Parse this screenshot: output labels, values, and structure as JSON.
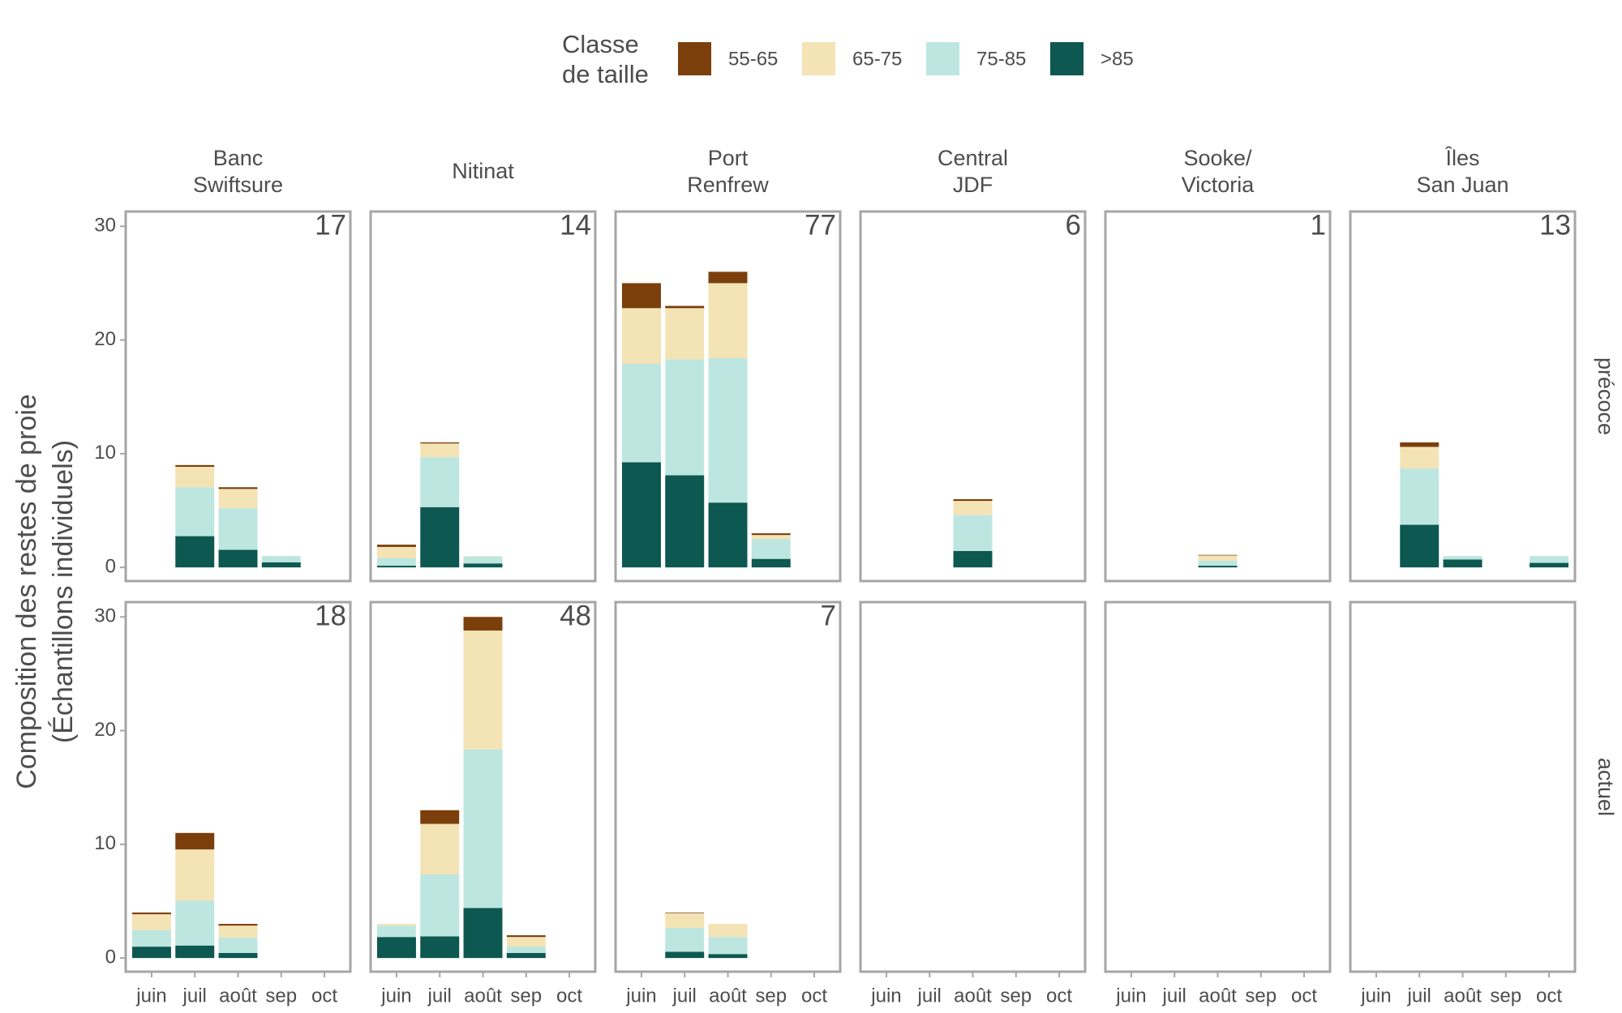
{
  "legend_title": [
    "Classe",
    "de taille"
  ],
  "ylabel": [
    "Composition des restes de proie",
    "(Échantillons individuels)"
  ],
  "chart_data": [
    {
      "type": "bar",
      "stacked": true,
      "title": [
        "Banc",
        "Swiftsure"
      ],
      "annotation": "17",
      "categories": [
        "juin",
        "juil",
        "août",
        "sep",
        "oct"
      ],
      "ylim": [
        -1.2,
        31.3
      ],
      "yticks": [
        0,
        10,
        20,
        30
      ],
      "series": [
        {
          "name": "55-65",
          "color": "#7b3f0c",
          "values": [
            0,
            0.15,
            0.15,
            0,
            0
          ]
        },
        {
          "name": "65-75",
          "color": "#f3e3b5",
          "values": [
            0,
            1.8,
            1.7,
            0,
            0
          ]
        },
        {
          "name": "75-85",
          "color": "#bde6e0",
          "values": [
            0,
            4.3,
            3.65,
            0.55,
            0
          ]
        },
        {
          "name": ">85",
          "color": "#0d5850",
          "values": [
            0,
            2.75,
            1.55,
            0.45,
            0
          ]
        }
      ]
    },
    {
      "type": "bar",
      "stacked": true,
      "title": [
        "Nitinat"
      ],
      "annotation": "14",
      "categories": [
        "juin",
        "juil",
        "août",
        "sep",
        "oct"
      ],
      "ylim": [
        -1.2,
        31.3
      ],
      "series": [
        {
          "name": "55-65",
          "color": "#7b3f0c",
          "values": [
            0.2,
            0.1,
            0,
            0,
            0
          ]
        },
        {
          "name": "65-75",
          "color": "#f3e3b5",
          "values": [
            1.0,
            1.2,
            0.05,
            0,
            0
          ]
        },
        {
          "name": "75-85",
          "color": "#bde6e0",
          "values": [
            0.65,
            4.4,
            0.6,
            0,
            0
          ]
        },
        {
          "name": ">85",
          "color": "#0d5850",
          "values": [
            0.15,
            5.3,
            0.35,
            0,
            0
          ]
        }
      ]
    },
    {
      "type": "bar",
      "stacked": true,
      "title": [
        "Port",
        "Renfrew"
      ],
      "annotation": "77",
      "categories": [
        "juin",
        "juil",
        "août",
        "sep",
        "oct"
      ],
      "ylim": [
        -1.2,
        31.3
      ],
      "series": [
        {
          "name": "55-65",
          "color": "#7b3f0c",
          "values": [
            2.2,
            0.2,
            1.0,
            0.15,
            0
          ]
        },
        {
          "name": "65-75",
          "color": "#f3e3b5",
          "values": [
            4.9,
            4.5,
            6.6,
            0.35,
            0
          ]
        },
        {
          "name": "75-85",
          "color": "#bde6e0",
          "values": [
            8.65,
            10.2,
            12.7,
            1.75,
            0
          ]
        },
        {
          "name": ">85",
          "color": "#0d5850",
          "values": [
            9.25,
            8.1,
            5.7,
            0.75,
            0
          ]
        }
      ]
    },
    {
      "type": "bar",
      "stacked": true,
      "title": [
        "Central",
        "JDF"
      ],
      "annotation": "6",
      "categories": [
        "juin",
        "juil",
        "août",
        "sep",
        "oct"
      ],
      "ylim": [
        -1.2,
        31.3
      ],
      "series": [
        {
          "name": "55-65",
          "color": "#7b3f0c",
          "values": [
            0,
            0,
            0.15,
            0,
            0
          ]
        },
        {
          "name": "65-75",
          "color": "#f3e3b5",
          "values": [
            0,
            0,
            1.25,
            0,
            0
          ]
        },
        {
          "name": "75-85",
          "color": "#bde6e0",
          "values": [
            0,
            0,
            3.15,
            0,
            0
          ]
        },
        {
          "name": ">85",
          "color": "#0d5850",
          "values": [
            0,
            0,
            1.45,
            0,
            0
          ]
        }
      ]
    },
    {
      "type": "bar",
      "stacked": true,
      "title": [
        "Sooke/",
        "Victoria"
      ],
      "annotation": "1",
      "categories": [
        "juin",
        "juil",
        "août",
        "sep",
        "oct"
      ],
      "ylim": [
        -1.2,
        31.3
      ],
      "series": [
        {
          "name": "55-65",
          "color": "#7b3f0c",
          "values": [
            0,
            0,
            0.05,
            0,
            0
          ]
        },
        {
          "name": "65-75",
          "color": "#f3e3b5",
          "values": [
            0,
            0,
            0.45,
            0,
            0
          ]
        },
        {
          "name": "75-85",
          "color": "#bde6e0",
          "values": [
            0,
            0,
            0.45,
            0,
            0
          ]
        },
        {
          "name": ">85",
          "color": "#0d5850",
          "values": [
            0,
            0,
            0.15,
            0,
            0
          ]
        }
      ]
    },
    {
      "type": "bar",
      "stacked": true,
      "title": [
        "Îles",
        "San Juan"
      ],
      "row_label": "précoce",
      "annotation": "13",
      "categories": [
        "juin",
        "juil",
        "août",
        "sep",
        "oct"
      ],
      "ylim": [
        -1.2,
        31.3
      ],
      "series": [
        {
          "name": "55-65",
          "color": "#7b3f0c",
          "values": [
            0,
            0.4,
            0,
            0,
            0
          ]
        },
        {
          "name": "65-75",
          "color": "#f3e3b5",
          "values": [
            0,
            1.9,
            0,
            0,
            0
          ]
        },
        {
          "name": "75-85",
          "color": "#bde6e0",
          "values": [
            0,
            4.95,
            0.3,
            0,
            0.6
          ]
        },
        {
          "name": ">85",
          "color": "#0d5850",
          "values": [
            0,
            3.75,
            0.7,
            0,
            0.4
          ]
        }
      ]
    },
    {
      "type": "bar",
      "stacked": true,
      "annotation": "18",
      "categories": [
        "juin",
        "juil",
        "août",
        "sep",
        "oct"
      ],
      "ylim": [
        -1.2,
        31.3
      ],
      "yticks": [
        0,
        10,
        20,
        30
      ],
      "series": [
        {
          "name": "55-65",
          "color": "#7b3f0c",
          "values": [
            0.15,
            1.45,
            0.15,
            0,
            0
          ]
        },
        {
          "name": "65-75",
          "color": "#f3e3b5",
          "values": [
            1.4,
            4.5,
            1.05,
            0,
            0
          ]
        },
        {
          "name": "75-85",
          "color": "#bde6e0",
          "values": [
            1.45,
            3.95,
            1.35,
            0,
            0
          ]
        },
        {
          "name": ">85",
          "color": "#0d5850",
          "values": [
            1.0,
            1.1,
            0.45,
            0,
            0
          ]
        }
      ]
    },
    {
      "type": "bar",
      "stacked": true,
      "annotation": "48",
      "categories": [
        "juin",
        "juil",
        "août",
        "sep",
        "oct"
      ],
      "ylim": [
        -1.2,
        31.3
      ],
      "series": [
        {
          "name": "55-65",
          "color": "#7b3f0c",
          "values": [
            0,
            1.2,
            1.2,
            0.15,
            0
          ]
        },
        {
          "name": "65-75",
          "color": "#f3e3b5",
          "values": [
            0.15,
            4.45,
            10.45,
            0.85,
            0
          ]
        },
        {
          "name": "75-85",
          "color": "#bde6e0",
          "values": [
            1.0,
            5.45,
            13.95,
            0.55,
            0
          ]
        },
        {
          "name": ">85",
          "color": "#0d5850",
          "values": [
            1.85,
            1.9,
            4.4,
            0.45,
            0
          ]
        }
      ]
    },
    {
      "type": "bar",
      "stacked": true,
      "annotation": "7",
      "categories": [
        "juin",
        "juil",
        "août",
        "sep",
        "oct"
      ],
      "ylim": [
        -1.2,
        31.3
      ],
      "series": [
        {
          "name": "55-65",
          "color": "#7b3f0c",
          "values": [
            0,
            0.05,
            0,
            0,
            0
          ]
        },
        {
          "name": "65-75",
          "color": "#f3e3b5",
          "values": [
            0,
            1.3,
            1.15,
            0,
            0
          ]
        },
        {
          "name": "75-85",
          "color": "#bde6e0",
          "values": [
            0,
            2.1,
            1.5,
            0,
            0
          ]
        },
        {
          "name": ">85",
          "color": "#0d5850",
          "values": [
            0,
            0.55,
            0.35,
            0,
            0
          ]
        }
      ]
    },
    {
      "type": "bar",
      "stacked": true,
      "categories": [
        "juin",
        "juil",
        "août",
        "sep",
        "oct"
      ],
      "ylim": [
        -1.2,
        31.3
      ],
      "series": []
    },
    {
      "type": "bar",
      "stacked": true,
      "categories": [
        "juin",
        "juil",
        "août",
        "sep",
        "oct"
      ],
      "ylim": [
        -1.2,
        31.3
      ],
      "series": []
    },
    {
      "type": "bar",
      "stacked": true,
      "row_label": "actuel",
      "categories": [
        "juin",
        "juil",
        "août",
        "sep",
        "oct"
      ],
      "ylim": [
        -1.2,
        31.3
      ],
      "series": []
    }
  ]
}
